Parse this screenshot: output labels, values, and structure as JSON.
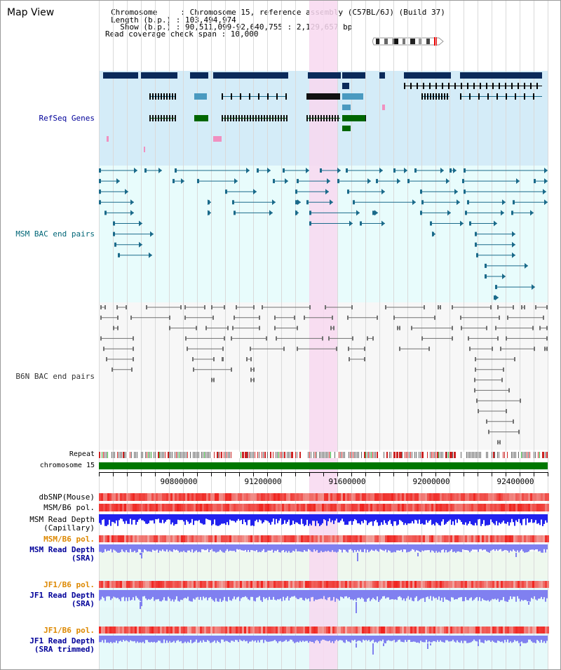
{
  "map_title": "Map View",
  "info": {
    "chromosome": "Chromosome     : Chromosome 15, reference assembly (C57BL/6J) (Build 37)",
    "length": "Length (b.p.) : 103,494,974",
    "show": "  Show (b.p.) : 90,511,099-92,640,755 : 2,129,657 bp",
    "coverage": "Read coverage check span : 10,000"
  },
  "tracks": {
    "refseq": "RefSeq Genes",
    "msm_bac": "MSM BAC end pairs",
    "b6n_bac": "B6N BAC end pairs",
    "repeat": "Repeat",
    "chromosome": "chromosome 15",
    "dbsnp": "dbSNP(Mouse)",
    "msm_b6_pol": "MSM/B6 pol.",
    "msm_read_cap_1": "MSM Read Depth",
    "msm_read_cap_2": "(Capillary)",
    "msm_b6_pol2": "MSM/B6 pol.",
    "msm_read_sra_1": "MSM Read Depth",
    "msm_read_sra_2": "(SRA)",
    "jf1_b6_pol": "JF1/B6 pol.",
    "jf1_read_sra_1": "JF1 Read Depth",
    "jf1_read_sra_2": "(SRA)",
    "jf1_b6_pol2": "JF1/B6 pol.",
    "jf1_read_trim_1": "JF1 Read Depth",
    "jf1_read_trim_2": "(SRA trimmed)"
  },
  "axis": {
    "ticks": [
      "90800000",
      "91200000",
      "91600000",
      "92000000",
      "92400000"
    ]
  },
  "colors": {
    "refseq_bg": "#d4ecf8",
    "msm_bg": "#e8fcfc",
    "b6n_bg": "#f7f7f7",
    "highlight": "#f8d8f0",
    "gene_dark": "#0a2a5a",
    "gene_mid": "#4a9ac0",
    "gene_green": "#006600",
    "msm_line": "#1a6a8a",
    "b6n_line": "#707070",
    "chromosome": "#007700",
    "read_blue": "#2222ee",
    "read_light": "#8080f0",
    "label_navy": "#000099",
    "label_orange": "#dd8800",
    "label_teal": "#006677"
  }
}
